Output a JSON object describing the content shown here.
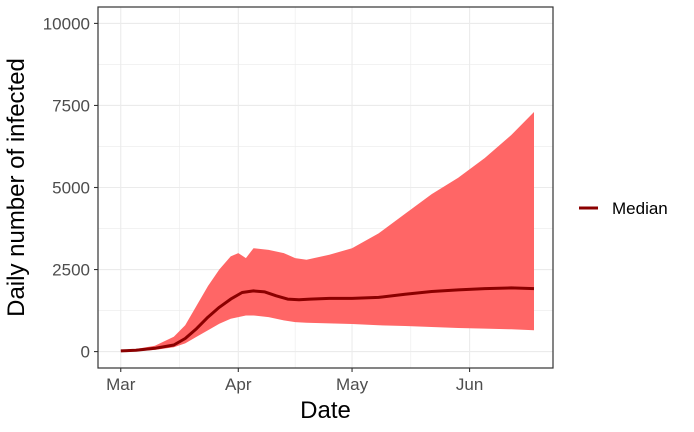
{
  "chart_data": {
    "type": "area",
    "xlabel": "Date",
    "ylabel": "Daily number of infected",
    "x_axis": {
      "type": "date",
      "range": [
        "2020-02-24",
        "2020-06-23"
      ],
      "ticks": [
        {
          "date": "2020-03-01",
          "label": "Mar"
        },
        {
          "date": "2020-04-01",
          "label": "Apr"
        },
        {
          "date": "2020-05-01",
          "label": "May"
        },
        {
          "date": "2020-06-01",
          "label": "Jun"
        }
      ]
    },
    "y_axis": {
      "range": [
        -500,
        10500
      ],
      "ticks": [
        {
          "value": 0,
          "label": "0"
        },
        {
          "value": 2500,
          "label": "2500"
        },
        {
          "value": 5000,
          "label": "5000"
        },
        {
          "value": 7500,
          "label": "7500"
        },
        {
          "value": 10000,
          "label": "10000"
        }
      ]
    },
    "grid": true,
    "legend": {
      "position": "right",
      "entries": [
        {
          "label": "Median",
          "color": "#8b0000"
        }
      ]
    },
    "colors": {
      "median": "#8b0000",
      "band": "#ff6666",
      "grid": "#ebebeb",
      "panel_border": "#333333"
    },
    "series": [
      {
        "name": "Median",
        "kind": "line",
        "points": [
          [
            "2020-03-01",
            20
          ],
          [
            "2020-03-05",
            40
          ],
          [
            "2020-03-10",
            100
          ],
          [
            "2020-03-15",
            200
          ],
          [
            "2020-03-18",
            400
          ],
          [
            "2020-03-21",
            700
          ],
          [
            "2020-03-24",
            1050
          ],
          [
            "2020-03-27",
            1350
          ],
          [
            "2020-03-30",
            1600
          ],
          [
            "2020-04-02",
            1800
          ],
          [
            "2020-04-05",
            1850
          ],
          [
            "2020-04-08",
            1820
          ],
          [
            "2020-04-11",
            1700
          ],
          [
            "2020-04-14",
            1600
          ],
          [
            "2020-04-17",
            1580
          ],
          [
            "2020-04-20",
            1600
          ],
          [
            "2020-04-25",
            1620
          ],
          [
            "2020-05-01",
            1620
          ],
          [
            "2020-05-08",
            1650
          ],
          [
            "2020-05-15",
            1750
          ],
          [
            "2020-05-22",
            1830
          ],
          [
            "2020-05-29",
            1880
          ],
          [
            "2020-06-05",
            1920
          ],
          [
            "2020-06-12",
            1940
          ],
          [
            "2020-06-18",
            1920
          ]
        ]
      },
      {
        "kind": "band",
        "points": [
          [
            "2020-03-01",
            0,
            40
          ],
          [
            "2020-03-05",
            10,
            80
          ],
          [
            "2020-03-10",
            50,
            180
          ],
          [
            "2020-03-15",
            130,
            450
          ],
          [
            "2020-03-18",
            250,
            800
          ],
          [
            "2020-03-21",
            450,
            1400
          ],
          [
            "2020-03-24",
            650,
            2000
          ],
          [
            "2020-03-27",
            850,
            2500
          ],
          [
            "2020-03-30",
            1000,
            2900
          ],
          [
            "2020-04-01",
            1050,
            3000
          ],
          [
            "2020-04-03",
            1100,
            2850
          ],
          [
            "2020-04-05",
            1100,
            3150
          ],
          [
            "2020-04-09",
            1050,
            3100
          ],
          [
            "2020-04-13",
            950,
            3000
          ],
          [
            "2020-04-16",
            900,
            2850
          ],
          [
            "2020-04-19",
            880,
            2800
          ],
          [
            "2020-04-25",
            860,
            2950
          ],
          [
            "2020-05-01",
            840,
            3150
          ],
          [
            "2020-05-08",
            800,
            3600
          ],
          [
            "2020-05-15",
            780,
            4200
          ],
          [
            "2020-05-22",
            750,
            4800
          ],
          [
            "2020-05-29",
            720,
            5300
          ],
          [
            "2020-06-05",
            700,
            5900
          ],
          [
            "2020-06-12",
            680,
            6600
          ],
          [
            "2020-06-18",
            650,
            7300
          ]
        ]
      }
    ]
  }
}
